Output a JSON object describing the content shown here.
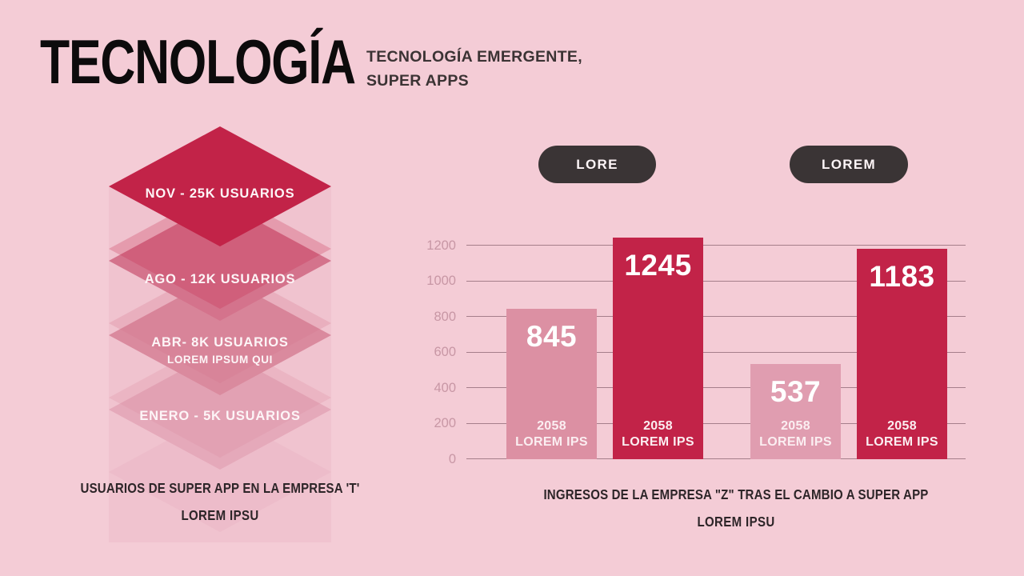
{
  "page": {
    "background": "#f4ccd6"
  },
  "header": {
    "title": "TECNOLOGÍA",
    "subtitle_line1": "TECNOLOGÍA EMERGENTE,",
    "subtitle_line2": "SUPER APPS"
  },
  "pyramid": {
    "layers": [
      {
        "label": "NOV - 25K USUARIOS",
        "sublabel": "",
        "color": "#c22348"
      },
      {
        "label": "AGO - 12K USUARIOS",
        "sublabel": "",
        "color": "#d4738c"
      },
      {
        "label": "ABR- 8K USUARIOS",
        "sublabel": "LOREM IPSUM QUI",
        "color": "#da8a9e"
      },
      {
        "label": "ENERO - 5K USUARIOS",
        "sublabel": "",
        "color": "#e5a9ba"
      }
    ],
    "caption_line1": "USUARIOS DE SUPER APP EN LA EMPRESA 'T'",
    "caption_line2": "LOREM IPSU"
  },
  "chart_data": {
    "type": "bar",
    "title": "INGRESOS DE LA EMPRESA \"Z\" TRAS EL CAMBIO A SUPER APP",
    "subtitle": "LOREM IPSU",
    "legend": [
      "LORE",
      "LOREM"
    ],
    "legend_position": "top",
    "legend_pill_color": "#3a3435",
    "categories": [
      [
        "2058",
        "LOREM IPS"
      ],
      [
        "2058",
        "LOREM IPS"
      ],
      [
        "2058",
        "LOREM IPS"
      ],
      [
        "2058",
        "LOREM IPS"
      ]
    ],
    "values": [
      845,
      1245,
      537,
      1183
    ],
    "bar_colors": [
      "#dc90a3",
      "#c22348",
      "#e09db0",
      "#c22348"
    ],
    "y_ticks": [
      0,
      200,
      400,
      600,
      800,
      1000,
      1200
    ],
    "ylim": [
      0,
      1366
    ],
    "grid": true,
    "gridline_color": "#a57f8b",
    "tick_label_color": "#c897a5"
  }
}
